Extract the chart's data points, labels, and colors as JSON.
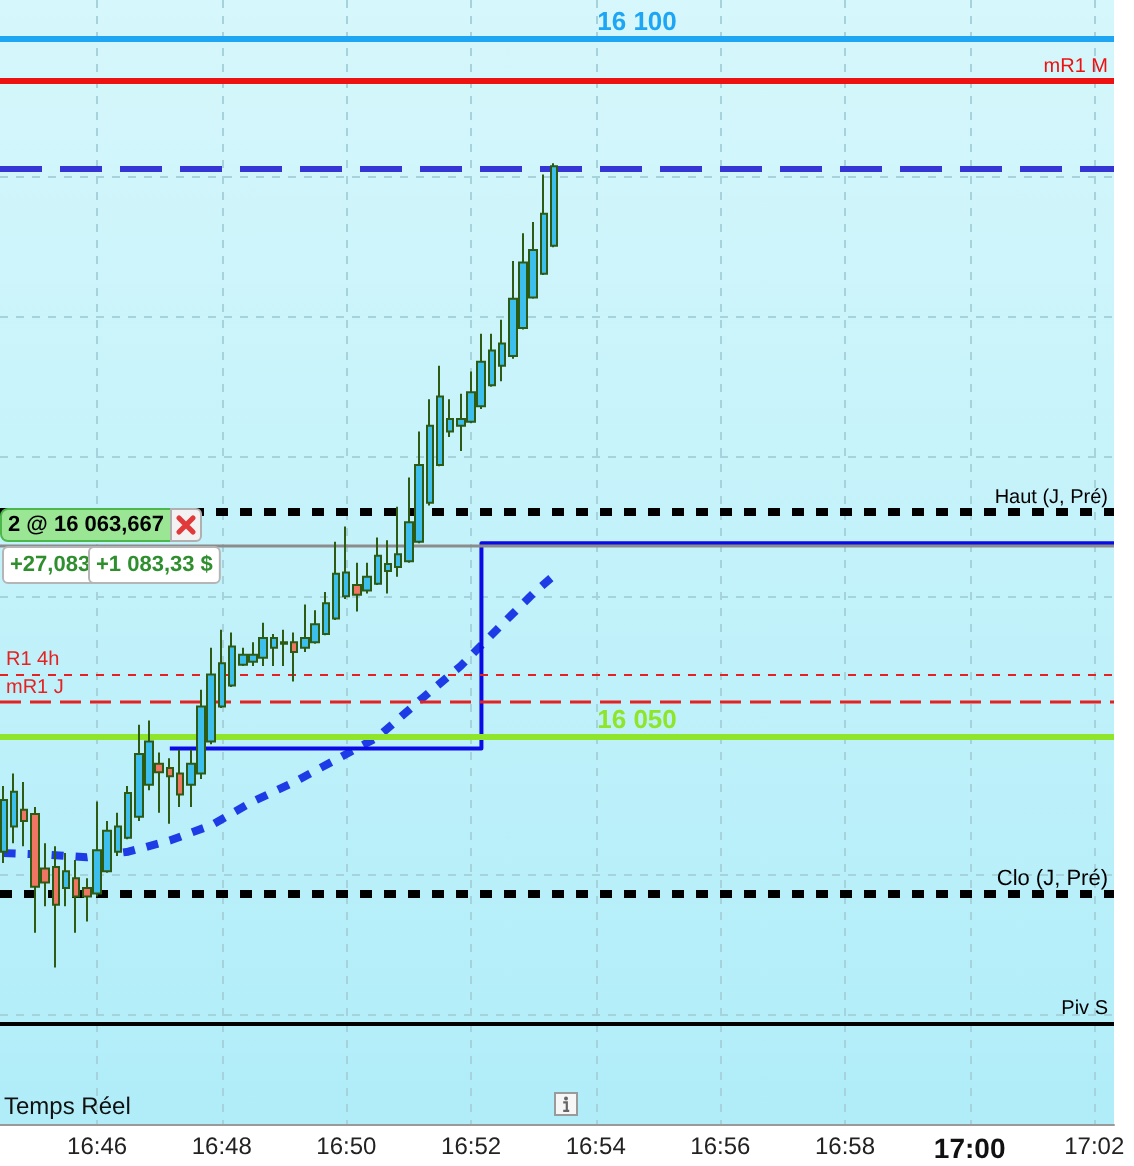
{
  "chart_data": {
    "type": "candlestick",
    "color": "#2e5b14",
    "x": [
      16.74167,
      16.74444,
      16.74722,
      16.75,
      16.75278,
      16.75556,
      16.75833,
      16.76111,
      16.76389,
      16.76667,
      16.76944,
      16.77222,
      16.775,
      16.77778,
      16.78056,
      16.78333,
      16.78611,
      16.78889,
      16.79167,
      16.79444,
      16.79722,
      16.8,
      16.80278,
      16.80556,
      16.80833,
      16.81111,
      16.81389,
      16.81667,
      16.81944,
      16.82222,
      16.825,
      16.82778,
      16.83056,
      16.83333,
      16.83611,
      16.83889,
      16.84167,
      16.84444,
      16.84722,
      16.85,
      16.85278,
      16.85556,
      16.85833,
      16.86111,
      16.86389,
      16.86667,
      16.86944,
      16.87222,
      16.875,
      16.87778,
      16.88056,
      16.88333,
      16.88611,
      16.88889
    ],
    "ohlc": [
      [
        16041.7,
        16046.4,
        16040.9,
        16045.4
      ],
      [
        16043.5,
        16047.3,
        16042.3,
        16046.0
      ],
      [
        16044.7,
        16046.7,
        16042.1,
        16043.9
      ],
      [
        16044.4,
        16044.9,
        16035.9,
        16039.2
      ],
      [
        16040.5,
        16042.3,
        16037.8,
        16039.5
      ],
      [
        16040.6,
        16042.1,
        16033.4,
        16037.9
      ],
      [
        16039.1,
        16041.6,
        16037.8,
        16040.3
      ],
      [
        16039.8,
        16041.1,
        16035.9,
        16038.5
      ],
      [
        16039.1,
        16039.8,
        16036.7,
        16038.5
      ],
      [
        16038.7,
        16045.3,
        16038.5,
        16041.8
      ],
      [
        16040.3,
        16043.9,
        16040.2,
        16043.2
      ],
      [
        16041.7,
        16044.5,
        16041.4,
        16043.5
      ],
      [
        16042.7,
        16046.4,
        16042.6,
        16045.9
      ],
      [
        16044.2,
        16050.8,
        16043.9,
        16048.7
      ],
      [
        16046.5,
        16051.1,
        16046.1,
        16049.6
      ],
      [
        16048.0,
        16048.8,
        16044.5,
        16047.4
      ],
      [
        16047.7,
        16048.4,
        16043.7,
        16047.1
      ],
      [
        16047.3,
        16049.0,
        16044.9,
        16045.8
      ],
      [
        16046.5,
        16049.0,
        16044.9,
        16048.0
      ],
      [
        16047.3,
        16053.3,
        16046.9,
        16052.1
      ],
      [
        16049.6,
        16056.3,
        16049.4,
        16054.4
      ],
      [
        16052.1,
        16057.6,
        16052.0,
        16055.2
      ],
      [
        16053.6,
        16057.4,
        16053.5,
        16056.4
      ],
      [
        16055.1,
        16056.3,
        16055.0,
        16055.8
      ],
      [
        16055.3,
        16056.7,
        16055.0,
        16055.8
      ],
      [
        16055.6,
        16058.1,
        16055.0,
        16057.0
      ],
      [
        16056.3,
        16057.3,
        16055.0,
        16057.0
      ],
      [
        16056.6,
        16057.6,
        16055.0,
        16056.7
      ],
      [
        16056.7,
        16057.4,
        16053.9,
        16056.0
      ],
      [
        16056.3,
        16059.4,
        16056.0,
        16057.0
      ],
      [
        16056.7,
        16059.0,
        16056.6,
        16058.0
      ],
      [
        16057.3,
        16060.3,
        16057.2,
        16059.5
      ],
      [
        16058.4,
        16063.9,
        16058.3,
        16061.6
      ],
      [
        16060.0,
        16065.0,
        16059.8,
        16061.7
      ],
      [
        16060.8,
        16062.4,
        16058.9,
        16060.1
      ],
      [
        16060.4,
        16062.4,
        16060.2,
        16061.4
      ],
      [
        16060.9,
        16064.2,
        16060.8,
        16062.9
      ],
      [
        16061.8,
        16064.0,
        16060.2,
        16062.3
      ],
      [
        16062.1,
        16066.4,
        16061.4,
        16063.0
      ],
      [
        16062.5,
        16068.5,
        16062.4,
        16065.3
      ],
      [
        16063.9,
        16071.8,
        16063.8,
        16069.4
      ],
      [
        16066.7,
        16074.1,
        16066.5,
        16072.2
      ],
      [
        16069.4,
        16076.5,
        16069.3,
        16074.3
      ],
      [
        16071.8,
        16074.1,
        16071.4,
        16072.7
      ],
      [
        16072.2,
        16074.5,
        16070.4,
        16072.7
      ],
      [
        16072.5,
        16076.1,
        16072.4,
        16074.6
      ],
      [
        16073.6,
        16078.8,
        16073.4,
        16076.8
      ],
      [
        16075.1,
        16078.8,
        16075.0,
        16077.6
      ],
      [
        16076.5,
        16079.8,
        16075.4,
        16078.1
      ],
      [
        16077.2,
        16084.0,
        16077.0,
        16081.3
      ],
      [
        16079.2,
        16086.0,
        16079.1,
        16083.9
      ],
      [
        16081.4,
        16086.8,
        16081.3,
        16084.8
      ],
      [
        16083.1,
        16090.2,
        16083.0,
        16087.4
      ],
      [
        16085.1,
        16091.0,
        16085.0,
        16090.8
      ]
    ],
    "colors": [
      "#3cbfec",
      "#3cbfec",
      "#f07563",
      "#f07563",
      "#f07563",
      "#f07563",
      "#3cbfec",
      "#f07563",
      "#f07563",
      "#3cbfec",
      "#3cbfec",
      "#3cbfec",
      "#3cbfec",
      "#3cbfec",
      "#3cbfec",
      "#f07563",
      "#f07563",
      "#f07563",
      "#3cbfec",
      "#3cbfec",
      "#3cbfec",
      "#3cbfec",
      "#3cbfec",
      "#3cbfec",
      "#3cbfec",
      "#3cbfec",
      "#3cbfec",
      "#3cbfec",
      "#f07563",
      "#3cbfec",
      "#3cbfec",
      "#3cbfec",
      "#3cbfec",
      "#3cbfec",
      "#f07563",
      "#3cbfec",
      "#3cbfec",
      "#3cbfec",
      "#3cbfec",
      "#3cbfec",
      "#3cbfec",
      "#3cbfec",
      "#3cbfec",
      "#3cbfec",
      "#3cbfec",
      "#3cbfec",
      "#3cbfec",
      "#3cbfec",
      "#3cbfec",
      "#3cbfec",
      "#3cbfec",
      "#3cbfec",
      "#3cbfec",
      "#3cbfec"
    ],
    "series": [
      {
        "type": "line",
        "color": "#1e3ce6",
        "line_style": "dotted",
        "x": [
          16.74167,
          16.75278,
          16.76389,
          16.775,
          16.78611,
          16.79722,
          16.80833,
          16.81944,
          16.83056,
          16.84167,
          16.85278,
          16.86389,
          16.875,
          16.88333,
          16.88889
        ],
        "values": [
          16041.6,
          16041.5,
          16041.3,
          16041.7,
          16042.5,
          16043.6,
          16045.3,
          16046.7,
          16048.3,
          16049.9,
          16052.5,
          16055.0,
          16058.0,
          16060.2,
          16061.5
        ]
      },
      {
        "type": "step",
        "color": "#0a0ae6",
        "x": [
          16.78611,
          16.86944,
          17.0386
        ],
        "values": [
          16049.1,
          16063.8,
          16063.8
        ]
      }
    ],
    "ref_lines": [
      {
        "axis": "y",
        "value": 16100,
        "label": "16 100",
        "color": "#1ea6f4",
        "line_style": "solid"
      },
      {
        "axis": "y",
        "value": 16096.9,
        "label": "mR1 M",
        "color": "#ee1111",
        "line_style": "solid"
      },
      {
        "axis": "y",
        "value": 16090.7,
        "label": null,
        "color": "#3535d5",
        "line_style": "dashed"
      },
      {
        "axis": "y",
        "value": 16066.0,
        "label": "Haut (J, Pré)",
        "color": "#000000",
        "line_style": "dotted"
      },
      {
        "axis": "y",
        "value": 16063.667,
        "label": null,
        "color": "#8c8c8c",
        "line_style": "solid"
      },
      {
        "axis": "y",
        "value": 16054.4,
        "label": "R1 4h",
        "color": "#e52222",
        "line_style": "dotted"
      },
      {
        "axis": "y",
        "value": 16052.4,
        "label": "mR1 J",
        "color": "#e52222",
        "line_style": "dashed"
      },
      {
        "axis": "y",
        "value": 16050,
        "label": "16 050",
        "color": "#8ee52a",
        "line_style": "solid"
      },
      {
        "axis": "y",
        "value": 16038.7,
        "label": "Clo (J, Pré)",
        "color": "#000000",
        "line_style": "dotted"
      },
      {
        "axis": "y",
        "value": 16029.4,
        "label": "Piv S",
        "color": "#000000",
        "line_style": "solid"
      }
    ],
    "annotations": [
      "2 @ 16 063,667",
      "+27,083",
      "+1 083,33 $",
      "Temps Réel"
    ],
    "xlim": [
      16.7407,
      17.0386
    ],
    "xticks": [
      {
        "value": 16.76667,
        "label": "16:46"
      },
      {
        "value": 16.8,
        "label": "16:48"
      },
      {
        "value": 16.83333,
        "label": "16:50"
      },
      {
        "value": 16.86667,
        "label": "16:52"
      },
      {
        "value": 16.9,
        "label": "16:54"
      },
      {
        "value": 16.93333,
        "label": "16:56"
      },
      {
        "value": 16.96667,
        "label": "16:58"
      },
      {
        "value": 17,
        "label": "17:00"
      },
      {
        "value": 17.03333,
        "label": "17:02"
      }
    ],
    "ylim": [
      16022.2,
      16102.7
    ],
    "yticks": [
      {
        "value": 16030,
        "label": null
      },
      {
        "value": 16040,
        "label": null
      },
      {
        "value": 16050,
        "label": null
      },
      {
        "value": 16060,
        "label": null
      },
      {
        "value": 16070,
        "label": null
      },
      {
        "value": 16080,
        "label": null
      },
      {
        "value": 16090,
        "label": null
      },
      {
        "value": 16100,
        "label": null
      }
    ],
    "tick_labels": "x",
    "grid": true,
    "marker": "none"
  }
}
